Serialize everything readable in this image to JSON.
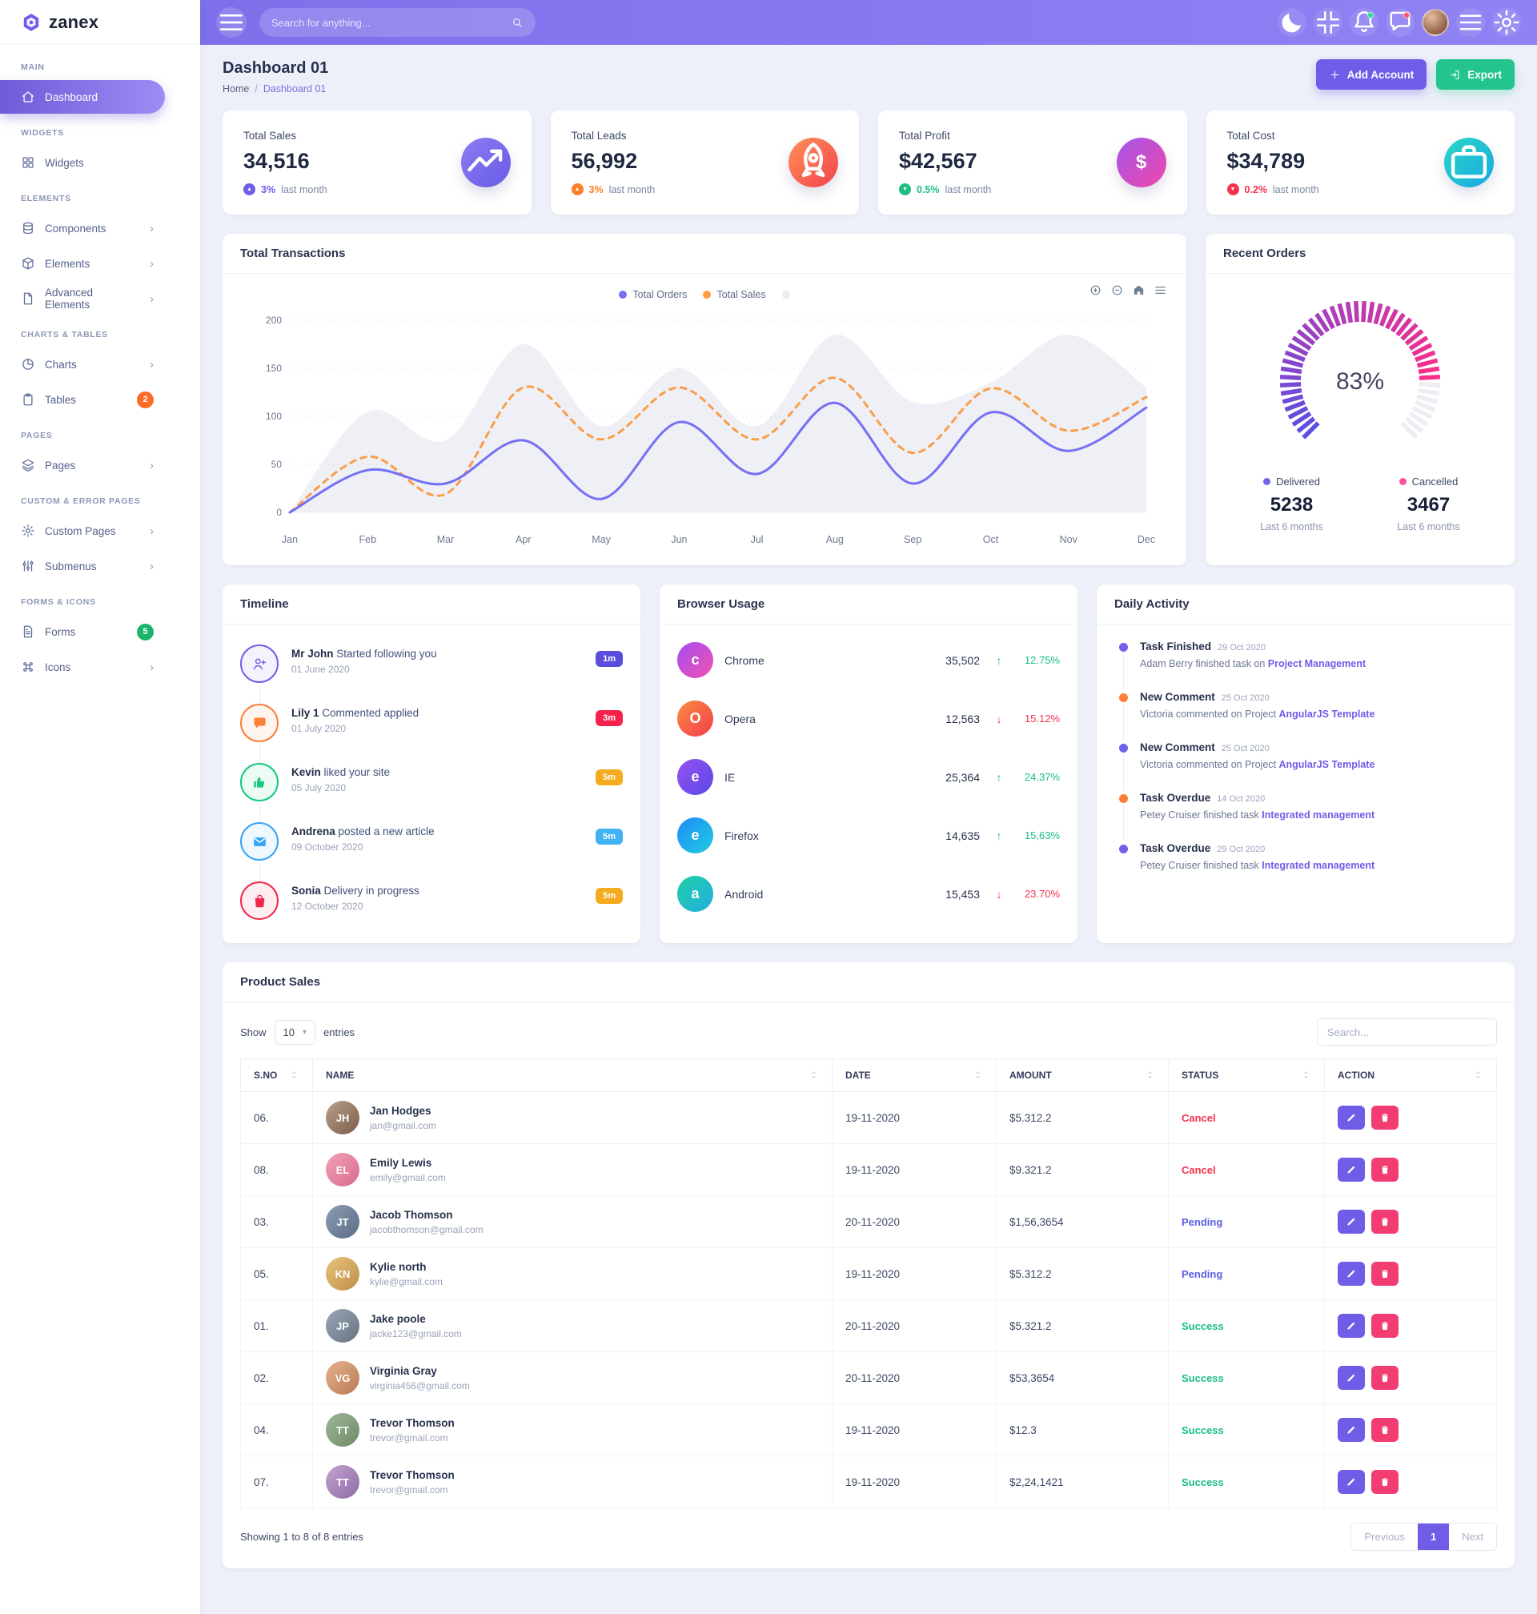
{
  "brand": {
    "name": "zanex"
  },
  "topbar": {
    "search_placeholder": "Search for anything...",
    "bell_dot_color": "#2ddc9a",
    "chat_dot_color": "#ff5470"
  },
  "sidebar": {
    "sections": [
      {
        "label": "MAIN",
        "items": [
          {
            "label": "Dashboard",
            "icon": "home",
            "active": true
          }
        ]
      },
      {
        "label": "WIDGETS",
        "items": [
          {
            "label": "Widgets",
            "icon": "grid"
          }
        ]
      },
      {
        "label": "ELEMENTS",
        "items": [
          {
            "label": "Components",
            "icon": "database",
            "chevron": true
          },
          {
            "label": "Elements",
            "icon": "box",
            "chevron": true
          },
          {
            "label": "Advanced Elements",
            "icon": "file",
            "chevron": true
          }
        ]
      },
      {
        "label": "CHARTS & TABLES",
        "items": [
          {
            "label": "Charts",
            "icon": "pie",
            "chevron": true
          },
          {
            "label": "Tables",
            "icon": "clipboard",
            "badge": "2",
            "badge_color": "#fb6b25"
          }
        ]
      },
      {
        "label": "PAGES",
        "items": [
          {
            "label": "Pages",
            "icon": "layers",
            "chevron": true
          }
        ]
      },
      {
        "label": "CUSTOM & ERROR PAGES",
        "items": [
          {
            "label": "Custom Pages",
            "icon": "gear",
            "chevron": true
          },
          {
            "label": "Submenus",
            "icon": "sliders",
            "chevron": true
          }
        ]
      },
      {
        "label": "FORMS & ICONS",
        "items": [
          {
            "label": "Forms",
            "icon": "file-text",
            "badge": "5",
            "badge_color": "#1ab46a"
          },
          {
            "label": "Icons",
            "icon": "command",
            "chevron": true
          }
        ]
      }
    ]
  },
  "page": {
    "title": "Dashboard 01",
    "breadcrumb": [
      "Home",
      "Dashboard 01"
    ],
    "actions": {
      "add": "Add Account",
      "export": "Export"
    }
  },
  "stats": [
    {
      "label": "Total Sales",
      "value": "34,516",
      "delta": "3%",
      "suffix": "last month",
      "trend": "up",
      "accent": "#6c5ce7",
      "icon": "trend",
      "gradient": [
        "#8b7ef2",
        "#695ae6"
      ]
    },
    {
      "label": "Total Leads",
      "value": "56,992",
      "delta": "3%",
      "suffix": "last month",
      "trend": "up",
      "accent": "#fd7e28",
      "icon": "rocket",
      "gradient": [
        "#ff9157",
        "#f4424e"
      ]
    },
    {
      "label": "Total Profit",
      "value": "$42,567",
      "delta": "0.5%",
      "suffix": "last month",
      "trend": "down",
      "accent": "#1bbf83",
      "icon": "dollar",
      "gradient": [
        "#a355e9",
        "#ef48ac"
      ]
    },
    {
      "label": "Total Cost",
      "value": "$34,789",
      "delta": "0.2%",
      "suffix": "last month",
      "trend": "down",
      "accent": "#f5334f",
      "icon": "briefcase",
      "gradient": [
        "#2bd8c5",
        "#18a7e3"
      ]
    }
  ],
  "panels": {
    "transactions": "Total Transactions",
    "recent_orders": "Recent Orders",
    "timeline": "Timeline",
    "browser_usage": "Browser Usage",
    "daily_activity": "Daily Activity",
    "product_sales": "Product Sales"
  },
  "chart_data": [
    {
      "type": "line",
      "title": "Total Transactions",
      "x": [
        "Jan",
        "Feb",
        "Mar",
        "Apr",
        "May",
        "Jun",
        "Jul",
        "Aug",
        "Sep",
        "Oct",
        "Nov",
        "Dec"
      ],
      "ylim": [
        0,
        200
      ],
      "yticks": [
        0,
        50,
        100,
        150,
        200
      ],
      "grid": "dotted",
      "legend_position": "top",
      "series": [
        {
          "name": "Total Orders",
          "color": "#7470f4",
          "style": "solid",
          "values": [
            0,
            44,
            30,
            75,
            14,
            94,
            40,
            114,
            30,
            104,
            64,
            109
          ]
        },
        {
          "name": "Total Sales",
          "color": "#fb9d47",
          "style": "dashed",
          "values": [
            0,
            58,
            19,
            130,
            76,
            130,
            76,
            140,
            62,
            129,
            85,
            120
          ]
        },
        {
          "name": "",
          "color": "#eef0f6",
          "style": "area",
          "values": [
            0,
            105,
            75,
            175,
            90,
            150,
            90,
            185,
            115,
            135,
            185,
            130
          ]
        }
      ]
    },
    {
      "type": "gauge",
      "title": "Recent Orders",
      "percent": 83,
      "label": "83%",
      "start_color": "#5b4fe4",
      "end_color": "#fd2e8a",
      "track_color": "#ededf4",
      "legend": [
        {
          "label": "Delivered",
          "value": "5238",
          "caption": "Last 6 months",
          "color": "#6f66e8"
        },
        {
          "label": "Cancelled",
          "value": "3467",
          "caption": "Last 6 months",
          "color": "#fd4f9e"
        }
      ]
    }
  ],
  "timeline": {
    "items": [
      {
        "name": "Mr John",
        "text": "Started following you",
        "date": "01 June 2020",
        "icon": "user-plus",
        "color": "#6f61e9",
        "badge": "1m",
        "badge_color": "#5b4ddb"
      },
      {
        "name": "Lily 1",
        "text": "Commented applied",
        "date": "01 July 2020",
        "icon": "comment",
        "color": "#fd7e36",
        "badge": "3m",
        "badge_color": "#f5234c"
      },
      {
        "name": "Kevin",
        "text": "liked your site",
        "date": "05 July 2020",
        "icon": "thumb",
        "color": "#15ca7c",
        "badge": "5m",
        "badge_color": "#f4ab20"
      },
      {
        "name": "Andrena",
        "text": "posted a new article",
        "date": "09 October 2020",
        "icon": "mail",
        "color": "#35a4f4",
        "badge": "5m",
        "badge_color": "#41b2f2"
      },
      {
        "name": "Sonia",
        "text": "Delivery in progress",
        "date": "12 October 2020",
        "icon": "bag",
        "color": "#f0284a",
        "badge": "5m",
        "badge_color": "#f4ab20"
      }
    ]
  },
  "browser_usage": {
    "items": [
      {
        "name": "Chrome",
        "value": "35,502",
        "change": "12.75%",
        "direction": "up",
        "gradient": [
          "#a44df0",
          "#f054b1"
        ],
        "glyph": "c"
      },
      {
        "name": "Opera",
        "value": "12,563",
        "change": "15.12%",
        "direction": "down",
        "gradient": [
          "#fb8b3f",
          "#f23e4e"
        ],
        "glyph": "O"
      },
      {
        "name": "IE",
        "value": "25,364",
        "change": "24.37%",
        "direction": "up",
        "gradient": [
          "#9553f2",
          "#5b47e6"
        ],
        "glyph": "e"
      },
      {
        "name": "Firefox",
        "value": "14,635",
        "change": "15,63%",
        "direction": "up",
        "gradient": [
          "#1d8cf8",
          "#22cbe0"
        ],
        "glyph": "e"
      },
      {
        "name": "Android",
        "value": "15,453",
        "change": "23.70%",
        "direction": "down",
        "gradient": [
          "#1fd0a5",
          "#23aee0"
        ],
        "glyph": "a"
      }
    ],
    "up_color": "#1bbf83",
    "down_color": "#f5334f"
  },
  "daily_activity": {
    "items": [
      {
        "title": "Task Finished",
        "date": "29 Oct 2020",
        "text": "Adam Berry finished task on",
        "link": "Project Management",
        "dot": "#6f61e9"
      },
      {
        "title": "New Comment",
        "date": "25 Oct 2020",
        "text": "Victoria commented on Project",
        "link": "AngularJS Template",
        "dot": "#fd7e36"
      },
      {
        "title": "New Comment",
        "date": "25 Oct 2020",
        "text": "Victoria commented on Project",
        "link": "AngularJS Template",
        "dot": "#6f61e9"
      },
      {
        "title": "Task Overdue",
        "date": "14 Oct 2020",
        "text": "Petey Cruiser finished task",
        "link": "Integrated management",
        "dot": "#fd7e36"
      },
      {
        "title": "Task Overdue",
        "date": "29 Oct 2020",
        "text": "Petey Cruiser finished task",
        "link": "Integrated management",
        "dot": "#6f61e9"
      }
    ]
  },
  "product_sales": {
    "show_label": "Show",
    "entries_label": "entries",
    "page_size": "10",
    "search_placeholder": "Search...",
    "columns": [
      "S.NO",
      "NAME",
      "DATE",
      "AMOUNT",
      "STATUS",
      "ACTION"
    ],
    "rows": [
      {
        "sno": "06.",
        "name": "Jan Hodges",
        "email": "jan@gmail.com",
        "date": "19-11-2020",
        "amount": "$5.312.2",
        "status": "Cancel"
      },
      {
        "sno": "08.",
        "name": "Emily Lewis",
        "email": "emily@gmail.com",
        "date": "19-11-2020",
        "amount": "$9.321.2",
        "status": "Cancel"
      },
      {
        "sno": "03.",
        "name": "Jacob Thomson",
        "email": "jacobthomson@gmail.com",
        "date": "20-11-2020",
        "amount": "$1,56,3654",
        "status": "Pending"
      },
      {
        "sno": "05.",
        "name": "Kylie north",
        "email": "kylie@gmail.com",
        "date": "19-11-2020",
        "amount": "$5.312.2",
        "status": "Pending"
      },
      {
        "sno": "01.",
        "name": "Jake poole",
        "email": "jacke123@gmail.com",
        "date": "20-11-2020",
        "amount": "$5.321.2",
        "status": "Success"
      },
      {
        "sno": "02.",
        "name": "Virginia Gray",
        "email": "virginia456@gmail.com",
        "date": "20-11-2020",
        "amount": "$53,3654",
        "status": "Success"
      },
      {
        "sno": "04.",
        "name": "Trevor Thomson",
        "email": "trevor@gmail.com",
        "date": "19-11-2020",
        "amount": "$12.3",
        "status": "Success"
      },
      {
        "sno": "07.",
        "name": "Trevor Thomson",
        "email": "trevor@gmail.com",
        "date": "19-11-2020",
        "amount": "$2,24,1421",
        "status": "Success"
      }
    ],
    "status_colors": {
      "Cancel": "#f5334f",
      "Pending": "#5b5fe3",
      "Success": "#1bbf83"
    },
    "footer": "Showing 1 to 8 of 8 entries",
    "pagination": {
      "previous": "Previous",
      "page": "1",
      "next": "Next"
    }
  }
}
